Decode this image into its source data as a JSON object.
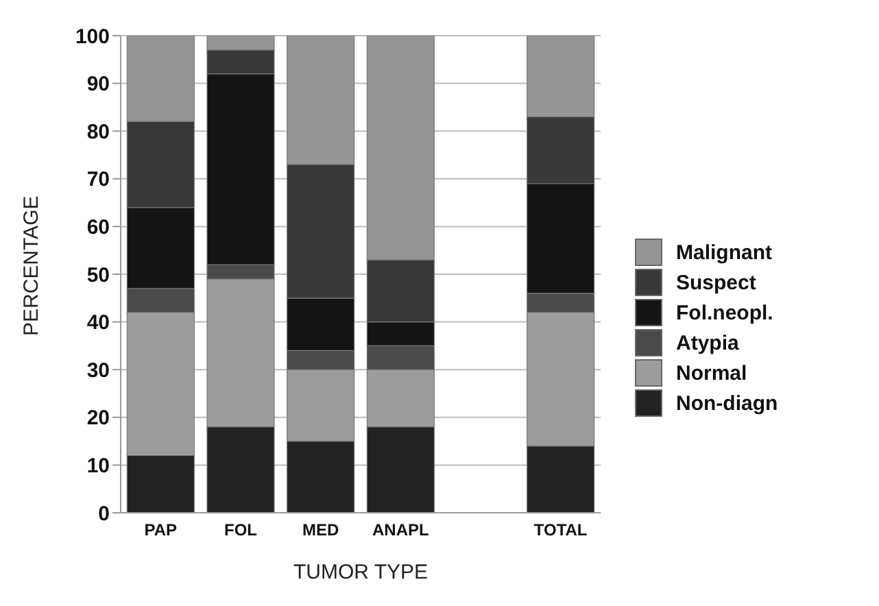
{
  "chart_data": {
    "type": "bar",
    "stacked": true,
    "xlabel": "TUMOR TYPE",
    "ylabel": "PERCENTAGE",
    "categories": [
      "PAP",
      "FOL",
      "MED",
      "ANAPL",
      null,
      "TOTAL"
    ],
    "series": [
      {
        "name": "Non-diagn",
        "color": "#222222",
        "values": [
          12,
          18,
          15,
          18,
          null,
          14
        ]
      },
      {
        "name": "Normal",
        "color": "#9c9c9c",
        "values": [
          30,
          31,
          15,
          12,
          null,
          28
        ]
      },
      {
        "name": "Atypia",
        "color": "#4a4a4a",
        "values": [
          5,
          3,
          4,
          5,
          null,
          4
        ]
      },
      {
        "name": "Fol.neopl.",
        "color": "#141414",
        "values": [
          17,
          40,
          11,
          5,
          null,
          23
        ]
      },
      {
        "name": "Suspect",
        "color": "#383838",
        "values": [
          18,
          5,
          28,
          13,
          null,
          14
        ]
      },
      {
        "name": "Malignant",
        "color": "#959595",
        "values": [
          18,
          3,
          27,
          47,
          null,
          17
        ]
      }
    ],
    "ylim": [
      0,
      100
    ],
    "yticks": [
      0,
      10,
      20,
      30,
      40,
      50,
      60,
      70,
      80,
      90,
      100
    ],
    "grid": "y",
    "legend": "right"
  }
}
